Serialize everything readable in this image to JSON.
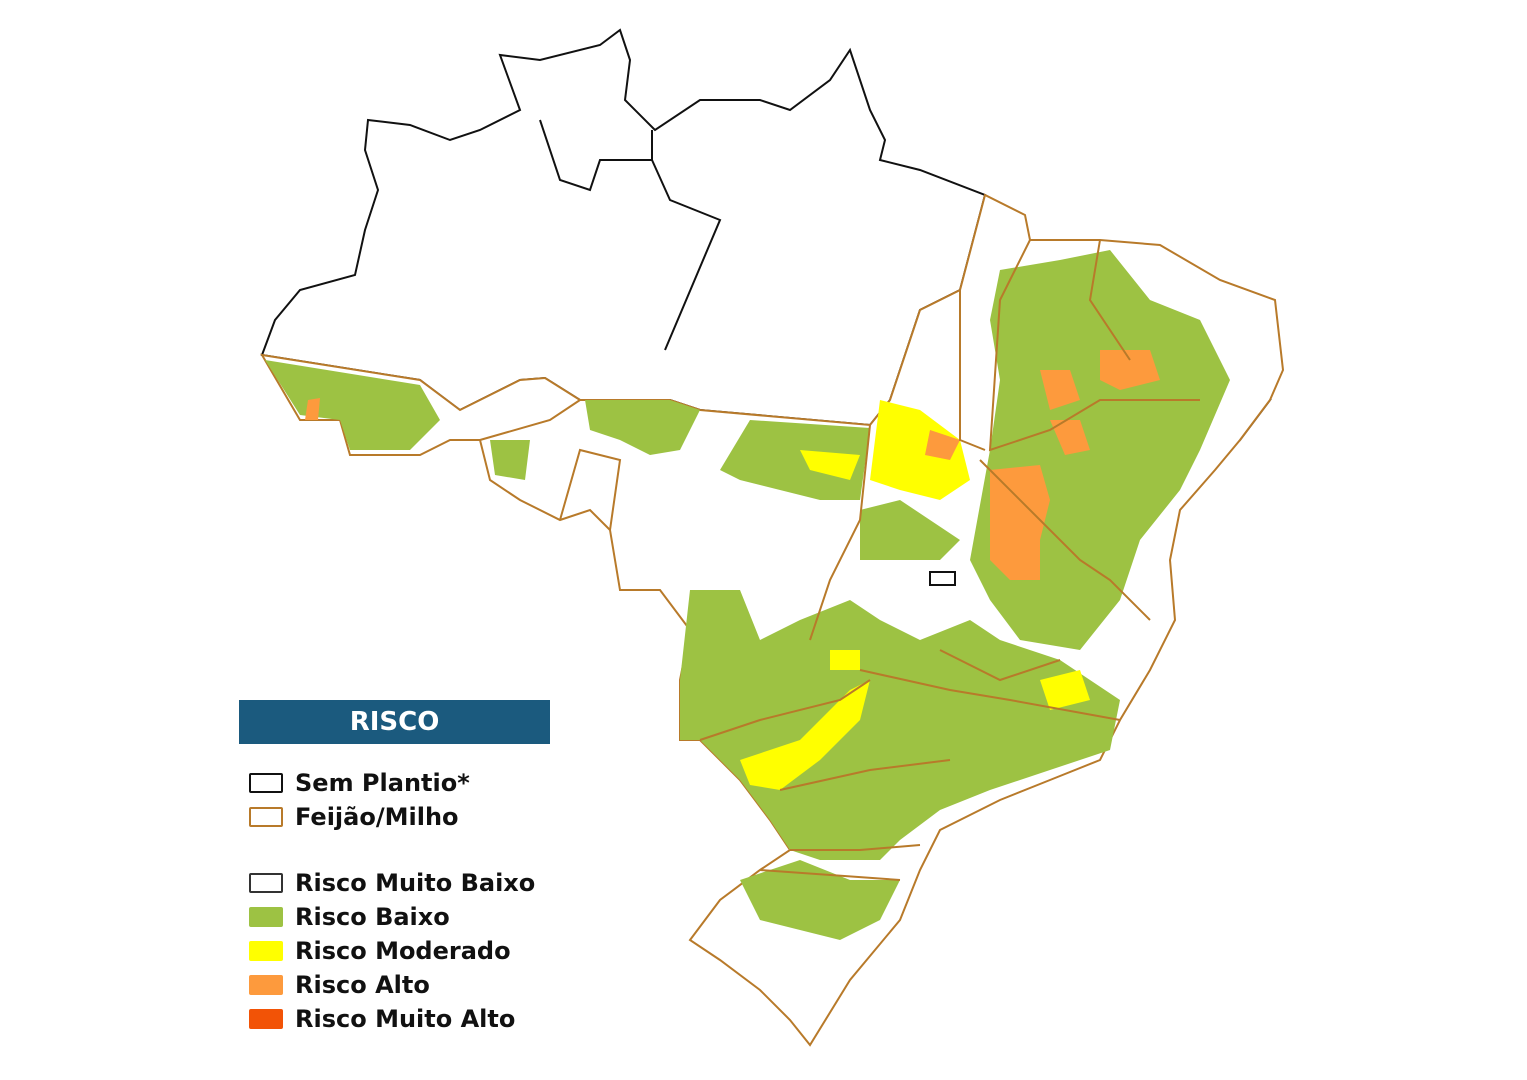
{
  "legend": {
    "title": "RISCO",
    "boundaries": [
      {
        "label": "Sem Plantio*",
        "stroke": "#111111"
      },
      {
        "label": "Feijão/Milho",
        "stroke": "#b87a2a"
      }
    ],
    "classes": [
      {
        "label": "Risco Muito Baixo",
        "color": "#ffffff",
        "stroke": "#333333"
      },
      {
        "label": "Risco Baixo",
        "color": "#9dc243"
      },
      {
        "label": "Risco Moderado",
        "color": "#ffff00"
      },
      {
        "label": "Risco Alto",
        "color": "#fd9a3d"
      },
      {
        "label": "Risco Muito Alto",
        "color": "#f25306"
      }
    ]
  }
}
